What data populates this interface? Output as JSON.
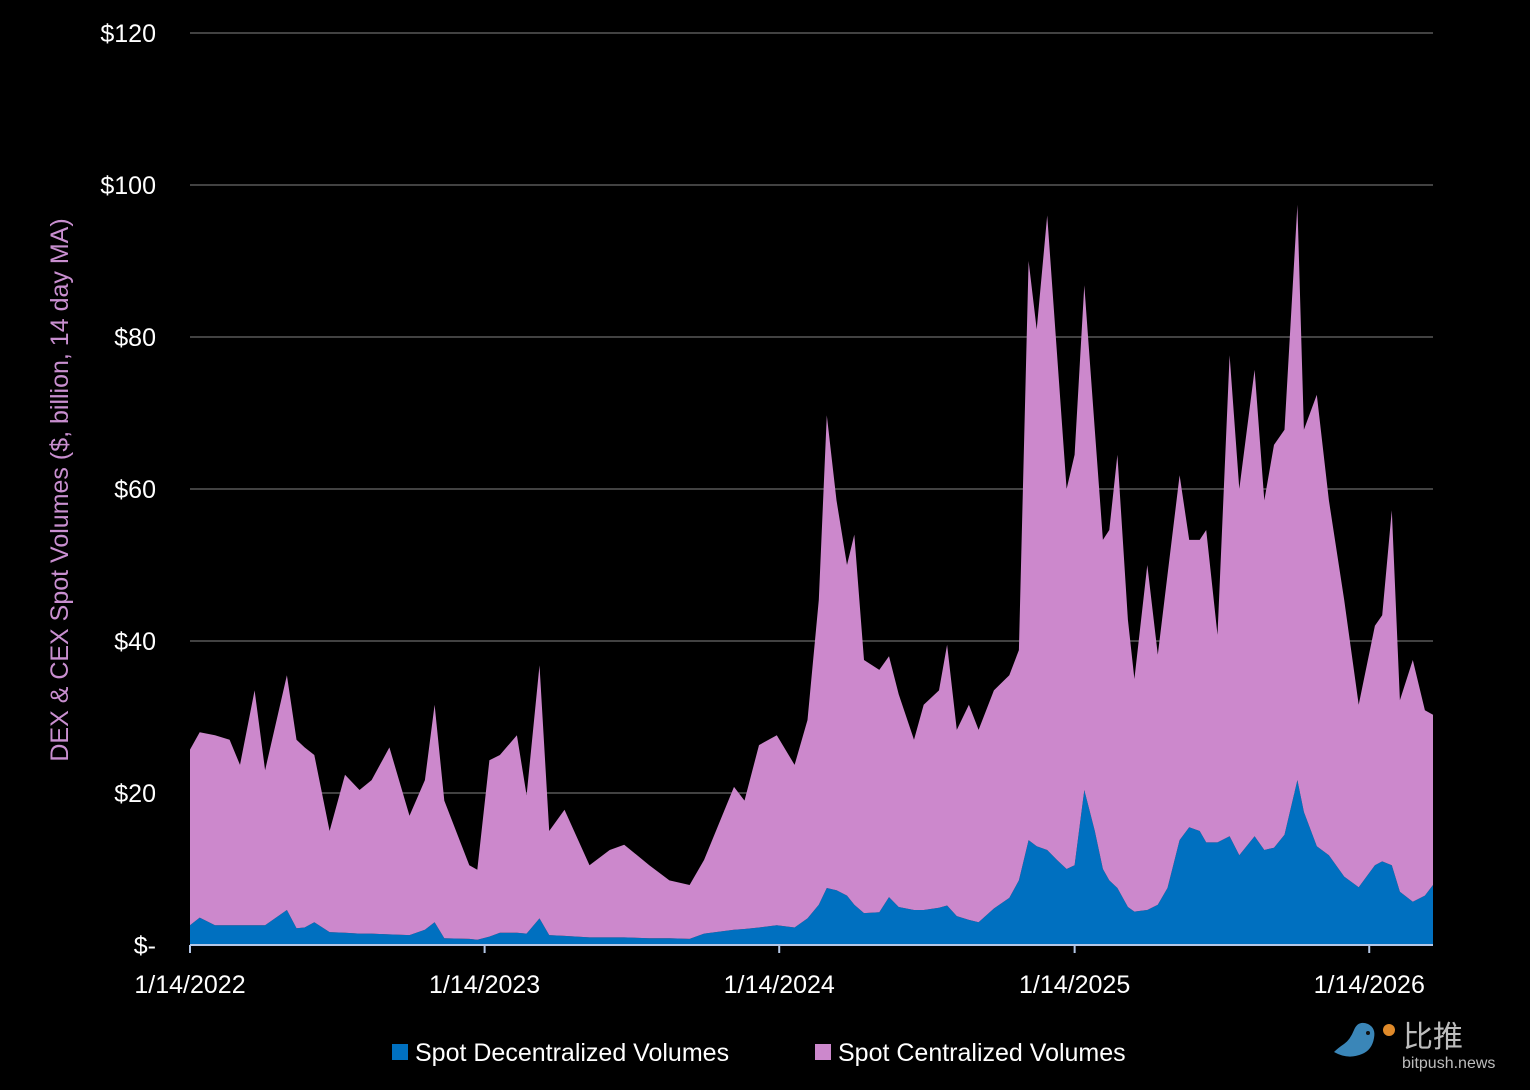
{
  "chart_data": {
    "type": "area",
    "stacked": true,
    "title": "",
    "xlabel": "",
    "ylabel": "DEX & CEX Spot Volumes ($, billion, 14 day MA)",
    "ylim": [
      0,
      120
    ],
    "xlim": [
      "2022-01-14",
      "2026-04-03"
    ],
    "yticks": [
      0,
      20,
      40,
      60,
      80,
      100,
      120
    ],
    "ytick_labels": [
      "$-",
      "$20",
      "$40",
      "$60",
      "$80",
      "$100",
      "$120"
    ],
    "xticks": [
      "2022-01-14",
      "2023-01-14",
      "2024-01-14",
      "2025-01-14",
      "2026-01-14"
    ],
    "xtick_labels": [
      "1/14/2022",
      "1/14/2023",
      "1/14/2024",
      "1/14/2025",
      "1/14/2026"
    ],
    "grid": "horizontal",
    "legend_position": "bottom",
    "x": [
      "2022-01-14",
      "2022-01-26",
      "2022-02-14",
      "2022-03-04",
      "2022-03-17",
      "2022-04-04",
      "2022-04-17",
      "2022-05-14",
      "2022-05-26",
      "2022-06-05",
      "2022-06-17",
      "2022-07-06",
      "2022-07-25",
      "2022-08-12",
      "2022-08-27",
      "2022-09-18",
      "2022-10-13",
      "2022-11-01",
      "2022-11-13",
      "2022-11-25",
      "2022-12-26",
      "2023-01-05",
      "2023-01-20",
      "2023-02-02",
      "2023-02-23",
      "2023-03-07",
      "2023-03-23",
      "2023-04-04",
      "2023-04-23",
      "2023-05-24",
      "2023-06-18",
      "2023-07-06",
      "2023-08-06",
      "2023-08-31",
      "2023-09-25",
      "2023-10-13",
      "2023-11-19",
      "2023-12-02",
      "2023-12-20",
      "2024-01-11",
      "2024-02-02",
      "2024-02-18",
      "2024-03-03",
      "2024-03-13",
      "2024-03-25",
      "2024-04-07",
      "2024-04-16",
      "2024-04-28",
      "2024-05-17",
      "2024-05-29",
      "2024-06-10",
      "2024-06-29",
      "2024-07-11",
      "2024-07-30",
      "2024-08-09",
      "2024-08-21",
      "2024-09-05",
      "2024-09-17",
      "2024-10-06",
      "2024-10-25",
      "2024-11-06",
      "2024-11-18",
      "2024-11-28",
      "2024-12-11",
      "2024-12-23",
      "2025-01-04",
      "2025-01-14",
      "2025-01-26",
      "2025-02-08",
      "2025-02-18",
      "2025-02-26",
      "2025-03-08",
      "2025-03-21",
      "2025-03-29",
      "2025-04-14",
      "2025-04-27",
      "2025-05-09",
      "2025-05-24",
      "2025-06-05",
      "2025-06-18",
      "2025-06-26",
      "2025-07-10",
      "2025-07-25",
      "2025-08-06",
      "2025-08-25",
      "2025-09-06",
      "2025-09-18",
      "2025-10-01",
      "2025-10-17",
      "2025-10-25",
      "2025-11-10",
      "2025-11-25",
      "2025-12-14",
      "2026-01-01",
      "2026-01-21",
      "2026-01-30",
      "2026-02-11",
      "2026-02-21",
      "2026-03-09",
      "2026-03-24",
      "2026-04-03"
    ],
    "series": [
      {
        "name": "Spot Decentralized Volumes",
        "color": "#0070c0",
        "values": [
          2.6,
          3.6,
          2.6,
          2.6,
          2.6,
          2.6,
          2.6,
          4.6,
          2.2,
          2.3,
          3.0,
          1.7,
          1.6,
          1.5,
          1.5,
          1.4,
          1.3,
          2.0,
          3.0,
          0.9,
          0.8,
          0.7,
          1.1,
          1.6,
          1.6,
          1.5,
          3.5,
          1.3,
          1.2,
          1.0,
          1.0,
          1.0,
          0.9,
          0.9,
          0.8,
          1.5,
          2.0,
          2.1,
          2.3,
          2.6,
          2.3,
          3.5,
          5.3,
          7.5,
          7.2,
          6.5,
          5.3,
          4.2,
          4.3,
          6.3,
          5.0,
          4.6,
          4.6,
          4.9,
          5.2,
          3.8,
          3.3,
          3.0,
          4.8,
          6.2,
          8.5,
          13.8,
          13.0,
          12.5,
          11.2,
          10.0,
          10.5,
          20.4,
          15.0,
          10.0,
          8.5,
          7.5,
          5.0,
          4.4,
          4.6,
          5.3,
          7.5,
          13.8,
          15.5,
          15.0,
          13.5,
          13.5,
          14.3,
          11.8,
          14.3,
          12.5,
          12.8,
          14.5,
          21.7,
          17.5,
          13.0,
          11.8,
          9.0,
          7.6,
          10.5,
          11.0,
          10.5,
          7.0,
          5.7,
          6.5,
          7.9
        ]
      },
      {
        "name": "Spot Centralized Volumes",
        "color": "#cc88cc",
        "values": [
          23.1,
          24.4,
          25.0,
          24.4,
          21.1,
          30.9,
          20.4,
          30.9,
          24.8,
          23.7,
          22.0,
          13.3,
          20.8,
          18.9,
          20.2,
          24.6,
          15.7,
          19.7,
          28.6,
          18.1,
          9.7,
          9.2,
          23.2,
          23.4,
          26.0,
          18.2,
          33.3,
          13.7,
          16.6,
          9.5,
          11.5,
          12.2,
          9.6,
          7.6,
          7.1,
          9.7,
          18.8,
          16.9,
          24.0,
          25.0,
          21.4,
          26.1,
          40.1,
          62.2,
          51.3,
          43.5,
          48.7,
          33.3,
          31.9,
          31.7,
          28.0,
          22.4,
          27.0,
          28.6,
          34.3,
          24.5,
          28.3,
          25.3,
          28.7,
          29.3,
          30.3,
          76.2,
          68.0,
          83.5,
          66.8,
          50.0,
          54.0,
          66.4,
          52.8,
          43.3,
          46.1,
          57.0,
          37.8,
          30.6,
          45.4,
          32.9,
          41.2,
          48.0,
          37.8,
          38.3,
          41.1,
          27.3,
          63.3,
          48.2,
          61.4,
          46.0,
          53.0,
          53.3,
          75.7,
          50.3,
          59.4,
          46.7,
          36.4,
          24.0,
          31.5,
          32.4,
          46.7,
          25.2,
          31.8,
          24.4,
          22.4
        ]
      }
    ]
  },
  "colors": {
    "background": "#000000",
    "grid": "#595959",
    "axis": "#b4c7e7",
    "ylabel": "#c98fd0"
  },
  "watermark": {
    "chinese": "比推",
    "site": "bitpush.news",
    "icon": "bird-bitcoin-logo"
  }
}
